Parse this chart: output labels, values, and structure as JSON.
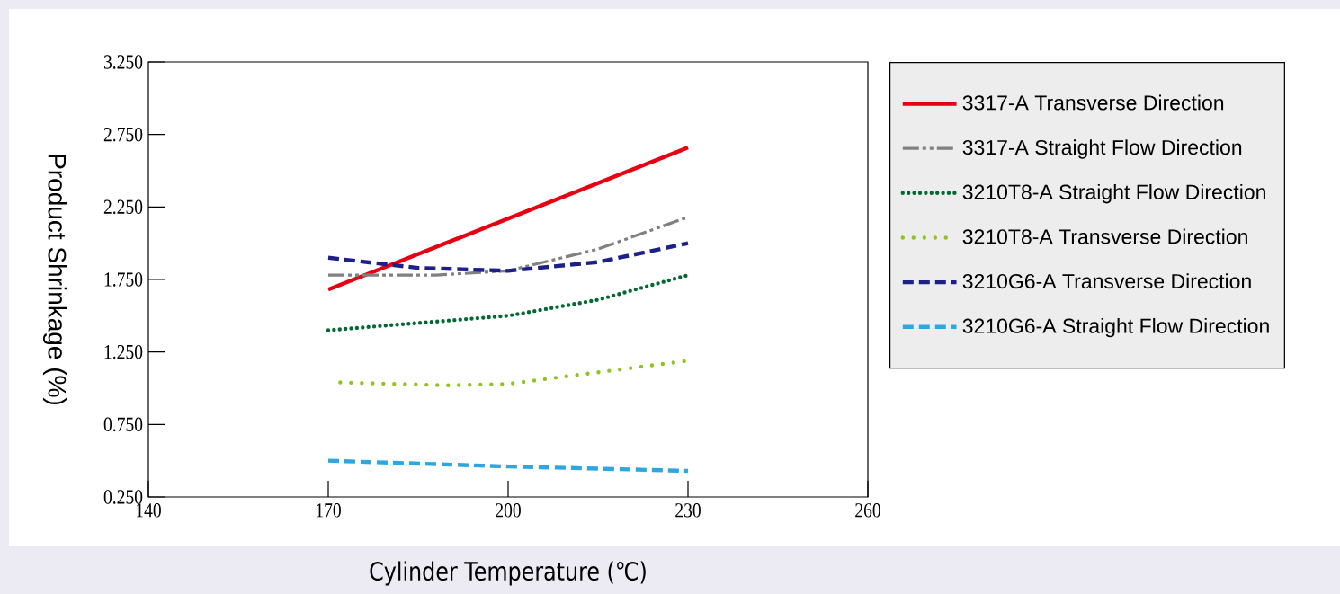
{
  "chart_data": {
    "type": "line",
    "xlabel": "Cylinder Temperature (℃)",
    "ylabel": "Product Shrinkage (%)",
    "xlim": [
      140,
      260
    ],
    "xticks": [
      140,
      170,
      200,
      230,
      260
    ],
    "ylim": [
      0.25,
      3.25
    ],
    "yticks": [
      {
        "value": 0.25,
        "label": "0.250"
      },
      {
        "value": 0.75,
        "label": "0.750"
      },
      {
        "value": 1.25,
        "label": "1.250"
      },
      {
        "value": 1.75,
        "label": "1.750"
      },
      {
        "value": 2.25,
        "label": "2.250"
      },
      {
        "value": 2.75,
        "label": "2.750"
      },
      {
        "value": 3.25,
        "label": "3.250"
      }
    ],
    "legend": "right",
    "grid": false,
    "series": [
      {
        "name": "3317-A Transverse Direction",
        "color": "#e60012",
        "line_style": "solid",
        "x": [
          170,
          230
        ],
        "values": [
          1.68,
          2.66
        ]
      },
      {
        "name": "3317-A Straight Flow Direction",
        "color": "#808080",
        "line_style": "dashdotdotted",
        "x": [
          170,
          188,
          200,
          215,
          230
        ],
        "values": [
          1.78,
          1.78,
          1.81,
          1.96,
          2.18
        ]
      },
      {
        "name": "3210T8-A Straight Flow Direction",
        "color": "#006934",
        "line_style": "dotted",
        "x": [
          170,
          185,
          200,
          215,
          230
        ],
        "values": [
          1.4,
          1.45,
          1.5,
          1.61,
          1.78
        ]
      },
      {
        "name": "3210T8-A Transverse Direction",
        "color": "#8fc31f",
        "line_style": "loosely dotted",
        "x": [
          172,
          190,
          200,
          215,
          230
        ],
        "values": [
          1.04,
          1.02,
          1.03,
          1.11,
          1.19
        ]
      },
      {
        "name": "3210G6-A Transverse Direction",
        "color": "#1d2088",
        "line_style": "dashed",
        "x": [
          170,
          185,
          200,
          215,
          230
        ],
        "values": [
          1.9,
          1.83,
          1.81,
          1.87,
          2.0
        ]
      },
      {
        "name": "3210G6-A Straight Flow Direction",
        "color": "#2ea7e0",
        "line_style": "dashed",
        "x": [
          170,
          200,
          230
        ],
        "values": [
          0.5,
          0.46,
          0.43
        ]
      }
    ]
  }
}
